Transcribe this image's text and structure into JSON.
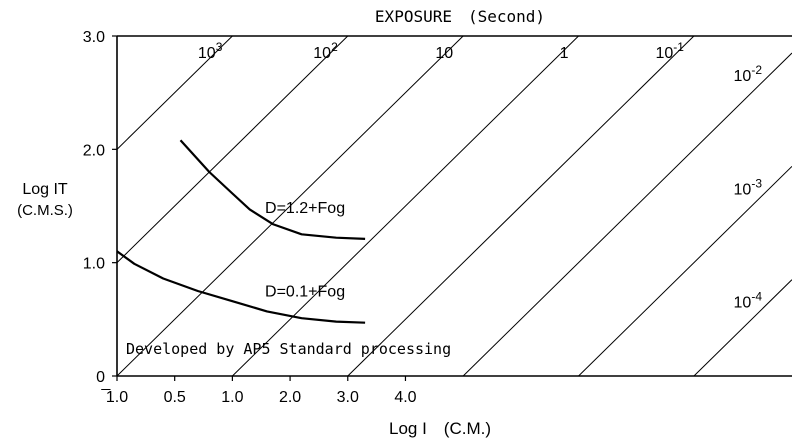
{
  "chart_data": {
    "type": "line",
    "title": "EXPOSURE　(Second)",
    "xlabel": "Log I　(C.M.)",
    "ylabel_line1": "Log IT",
    "ylabel_line2": "(C.M.S.)",
    "xlim": [
      -1.0,
      4.85
    ],
    "ylim": [
      0,
      3.0
    ],
    "x_ticks": [
      {
        "value": -1.0,
        "label": "̅1.0"
      },
      {
        "value": -0.5,
        "label": "0.5"
      },
      {
        "value": 0.0,
        "label": "1.0"
      },
      {
        "value": 0.5,
        "label": "2.0"
      },
      {
        "value": 1.0,
        "label": "3.0"
      },
      {
        "value": 1.5,
        "label": "4.0"
      }
    ],
    "y_ticks": [
      {
        "value": 0,
        "label": "0"
      },
      {
        "value": 1.0,
        "label": "1.0"
      },
      {
        "value": 2.0,
        "label": "2.0"
      },
      {
        "value": 3.0,
        "label": "3.0"
      }
    ],
    "grid": false,
    "exposure_lines": [
      {
        "log_t": 3,
        "base": "10",
        "exp": "3"
      },
      {
        "log_t": 2,
        "base": "10",
        "exp": "2"
      },
      {
        "log_t": 1,
        "base": "10",
        "exp": ""
      },
      {
        "log_t": 0,
        "base": "1",
        "exp": ""
      },
      {
        "log_t": -1,
        "base": "10",
        "exp": "-1"
      },
      {
        "log_t": -2,
        "base": "10",
        "exp": "-2"
      },
      {
        "log_t": -3,
        "base": "10",
        "exp": "-3"
      },
      {
        "log_t": -4,
        "base": "10",
        "exp": "-4"
      }
    ],
    "series": [
      {
        "name": "D=1.2+Fog",
        "x": [
          -0.45,
          -0.2,
          0.0,
          0.15,
          0.35,
          0.6,
          0.9,
          1.15
        ],
        "y": [
          2.08,
          1.8,
          1.61,
          1.47,
          1.34,
          1.25,
          1.22,
          1.21
        ]
      },
      {
        "name": "D=0.1+Fog",
        "x": [
          -1.0,
          -0.85,
          -0.6,
          -0.3,
          0.0,
          0.3,
          0.6,
          0.9,
          1.15
        ],
        "y": [
          1.1,
          0.99,
          0.86,
          0.75,
          0.66,
          0.57,
          0.51,
          0.48,
          0.47
        ]
      }
    ],
    "annotation": "Developed by AP5 Standard processing"
  }
}
